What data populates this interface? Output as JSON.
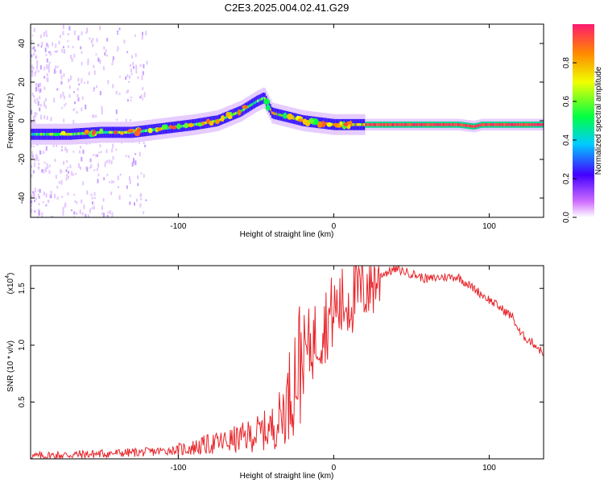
{
  "title": "C2E3.2025.004.02.41.G29",
  "chart_data": [
    {
      "type": "heatmap",
      "xlabel": "Height of straight line (km)",
      "ylabel": "Frequency (Hz)",
      "xlim": [
        -195,
        135
      ],
      "ylim": [
        -50,
        50
      ],
      "x_ticks": [
        -100,
        0,
        100
      ],
      "y_ticks": [
        -40,
        -20,
        0,
        20,
        40
      ],
      "colorbar": {
        "label": "Normalized spectral amplitude",
        "range": [
          0,
          1
        ],
        "ticks": [
          "0.0",
          "0.2",
          "0.4",
          "0.6",
          "0.8"
        ]
      },
      "ridge": {
        "x": [
          -195,
          -170,
          -150,
          -130,
          -110,
          -90,
          -75,
          -60,
          -50,
          -45,
          -40,
          -30,
          -20,
          -10,
          0,
          20,
          60,
          80,
          90,
          95,
          135
        ],
        "frequency": [
          -7,
          -7,
          -6,
          -6,
          -4,
          -2,
          0,
          5,
          10,
          12,
          4,
          2,
          0,
          -1,
          -2,
          -2,
          -2,
          -2,
          -3,
          -2,
          -2
        ]
      }
    },
    {
      "type": "line",
      "xlabel": "Height of straight line (km)",
      "ylabel": "SNR (10 * v/v)",
      "y_multiplier": "(x10",
      "y_exponent": "4",
      "xlim": [
        -195,
        135
      ],
      "ylim": [
        0,
        1.7
      ],
      "x_ticks": [
        -100,
        0,
        100
      ],
      "y_ticks": [
        "0.5",
        "1.0",
        "1.5"
      ],
      "color": "#e8262b",
      "series": [
        {
          "x": [
            -195,
            -180,
            -160,
            -140,
            -120,
            -100,
            -90,
            -80,
            -70,
            -60,
            -50,
            -40,
            -35,
            -30,
            -25,
            -20,
            -15,
            -10,
            -5,
            0,
            10,
            20,
            30,
            40,
            50,
            60,
            70,
            80,
            90,
            100,
            110,
            115,
            120,
            125,
            130,
            135
          ],
          "y": [
            0.02,
            0.03,
            0.04,
            0.05,
            0.06,
            0.08,
            0.1,
            0.13,
            0.15,
            0.18,
            0.22,
            0.27,
            0.35,
            0.5,
            0.75,
            0.9,
            1.0,
            1.1,
            1.2,
            1.3,
            1.4,
            1.52,
            1.62,
            1.67,
            1.63,
            1.58,
            1.6,
            1.6,
            1.5,
            1.4,
            1.3,
            1.25,
            1.1,
            1.05,
            1.0,
            0.92
          ]
        }
      ]
    }
  ]
}
